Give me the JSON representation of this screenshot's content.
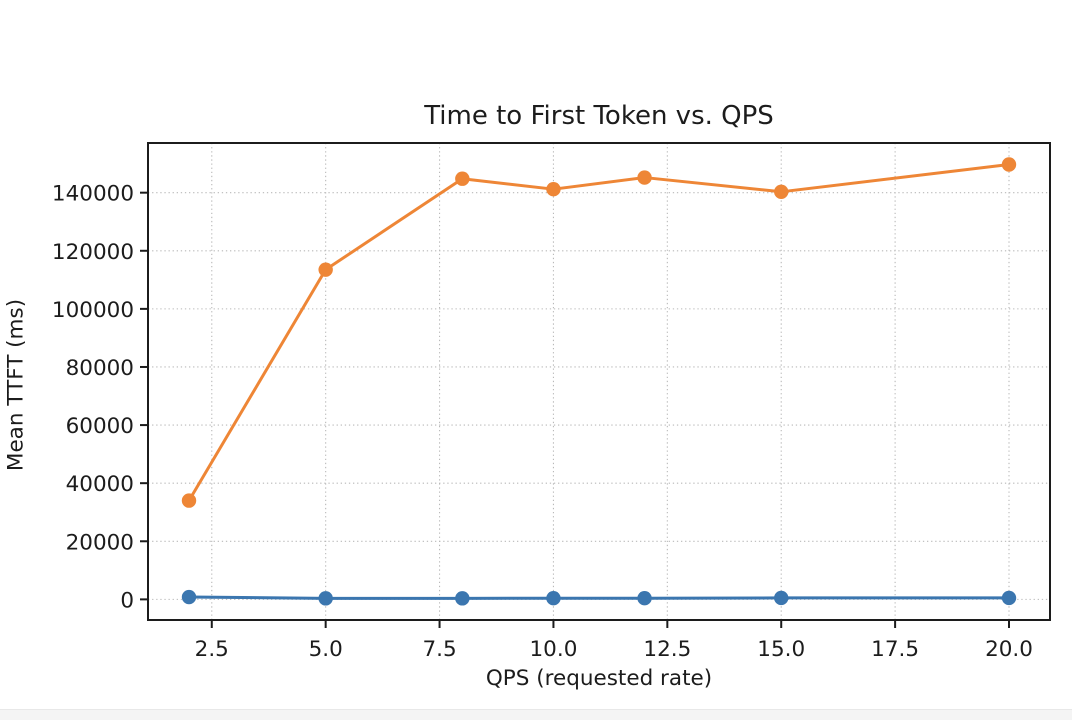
{
  "page": {
    "background_color": "#ffffff",
    "bottom_strip_color": "#f4f4f4"
  },
  "chart_data": {
    "type": "line",
    "title": "Time to First Token vs. QPS",
    "xlabel": "QPS (requested rate)",
    "ylabel": "Mean TTFT (ms)",
    "x": [
      2,
      5,
      8,
      10,
      12,
      15,
      20
    ],
    "series": [
      {
        "color_name": "blue",
        "color": "#3b76af",
        "values": [
          800,
          350,
          350,
          400,
          400,
          500,
          500
        ]
      },
      {
        "color_name": "orange",
        "color": "#ee8636",
        "values": [
          34000,
          113500,
          144800,
          141200,
          145200,
          140300,
          149700
        ]
      }
    ],
    "xticks": [
      2.5,
      5.0,
      7.5,
      10.0,
      12.5,
      15.0,
      17.5,
      20.0
    ],
    "xtick_labels": [
      "2.5",
      "5.0",
      "7.5",
      "10.0",
      "12.5",
      "15.0",
      "17.5",
      "20.0"
    ],
    "yticks": [
      0,
      20000,
      40000,
      60000,
      80000,
      100000,
      120000,
      140000
    ],
    "ytick_labels": [
      "0",
      "20000",
      "40000",
      "60000",
      "80000",
      "100000",
      "120000",
      "140000"
    ],
    "xlim": [
      1.1,
      20.9
    ],
    "ylim": [
      -7100,
      157100
    ],
    "grid": true,
    "grid_style": "dotted",
    "legend": "none",
    "marker": "circle",
    "text_color": "#1c1c1c",
    "grid_color": "#b9b9b9"
  }
}
